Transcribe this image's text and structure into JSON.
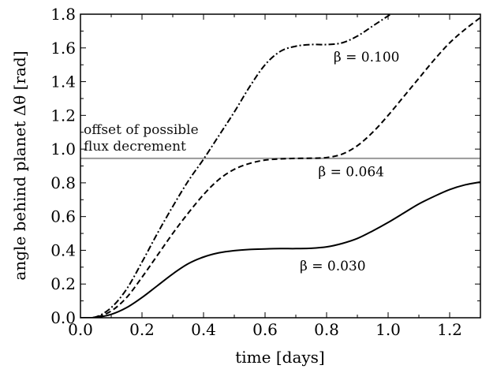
{
  "chart_data": {
    "type": "line",
    "xlabel": "time [days]",
    "ylabel": "angle behind planet Δθ [rad]",
    "xlim": [
      0.0,
      1.3
    ],
    "ylim": [
      0.0,
      1.8
    ],
    "xticks": [
      "0.0",
      "0.2",
      "0.4",
      "0.6",
      "0.8",
      "1.0",
      "1.2"
    ],
    "yticks": [
      "0.0",
      "0.2",
      "0.4",
      "0.6",
      "0.8",
      "1.0",
      "1.2",
      "1.4",
      "1.6",
      "1.8"
    ],
    "grid": false,
    "hline": {
      "y": 0.945,
      "color": "#999999",
      "label_line1": "offset of possible",
      "label_line2": "flux decrement"
    },
    "series": [
      {
        "name": "β = 0.030",
        "style": "solid",
        "color": "#000000",
        "x": [
          0.0,
          0.05,
          0.1,
          0.15,
          0.2,
          0.25,
          0.3,
          0.35,
          0.4,
          0.45,
          0.5,
          0.55,
          0.6,
          0.65,
          0.7,
          0.75,
          0.8,
          0.85,
          0.9,
          0.95,
          1.0,
          1.05,
          1.1,
          1.15,
          1.2,
          1.25,
          1.3
        ],
        "y": [
          0.0,
          0.002,
          0.02,
          0.06,
          0.12,
          0.19,
          0.26,
          0.32,
          0.36,
          0.385,
          0.398,
          0.405,
          0.408,
          0.41,
          0.41,
          0.412,
          0.42,
          0.44,
          0.47,
          0.515,
          0.565,
          0.62,
          0.675,
          0.72,
          0.76,
          0.788,
          0.805
        ]
      },
      {
        "name": "β = 0.064",
        "style": "dashed",
        "color": "#000000",
        "x": [
          0.0,
          0.05,
          0.1,
          0.15,
          0.2,
          0.25,
          0.3,
          0.35,
          0.4,
          0.45,
          0.5,
          0.55,
          0.6,
          0.65,
          0.7,
          0.75,
          0.8,
          0.85,
          0.9,
          0.95,
          1.0,
          1.05,
          1.1,
          1.15,
          1.2,
          1.25,
          1.3
        ],
        "y": [
          0.0,
          0.003,
          0.04,
          0.12,
          0.24,
          0.37,
          0.5,
          0.62,
          0.73,
          0.82,
          0.88,
          0.915,
          0.935,
          0.942,
          0.945,
          0.946,
          0.95,
          0.97,
          1.02,
          1.1,
          1.2,
          1.31,
          1.42,
          1.53,
          1.63,
          1.71,
          1.78
        ]
      },
      {
        "name": "β = 0.100",
        "style": "dashdot",
        "color": "#000000",
        "x": [
          0.0,
          0.05,
          0.1,
          0.15,
          0.2,
          0.25,
          0.3,
          0.35,
          0.4,
          0.45,
          0.5,
          0.55,
          0.6,
          0.65,
          0.7,
          0.75,
          0.8,
          0.85,
          0.9,
          0.95,
          1.0,
          1.05
        ],
        "y": [
          0.0,
          0.005,
          0.06,
          0.17,
          0.33,
          0.5,
          0.66,
          0.81,
          0.94,
          1.08,
          1.22,
          1.37,
          1.5,
          1.58,
          1.61,
          1.62,
          1.62,
          1.63,
          1.67,
          1.73,
          1.79,
          1.85
        ]
      }
    ],
    "annotations": [
      {
        "text": "β = 0.100",
        "x": 0.93,
        "y": 1.52
      },
      {
        "text": "β = 0.064",
        "x": 0.88,
        "y": 0.84
      },
      {
        "text": "β = 0.030",
        "x": 0.82,
        "y": 0.28
      }
    ]
  }
}
